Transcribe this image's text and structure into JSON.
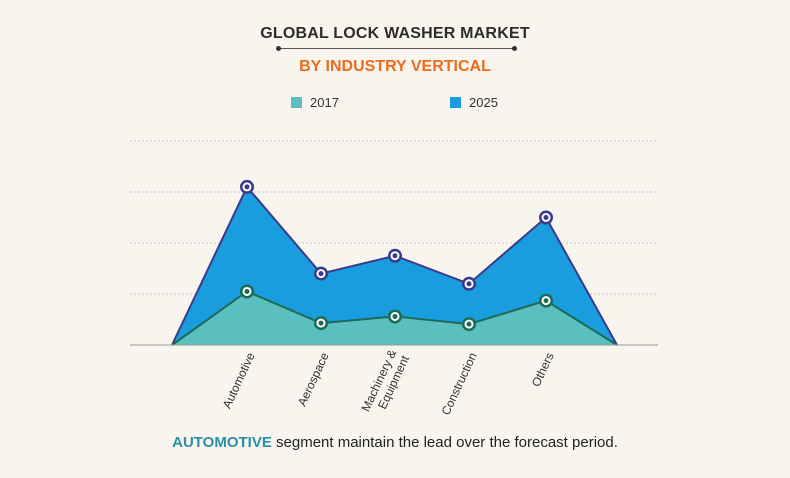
{
  "title": "GLOBAL LOCK WASHER MARKET",
  "subtitle": "BY INDUSTRY VERTICAL",
  "caption": {
    "highlight": "AUTOMOTIVE",
    "rest": " segment maintain the lead over the forecast period."
  },
  "colors": {
    "subtitle": "#ee6a1d",
    "highlight": "#2b8fa8",
    "series_2017": "#5bbfbf",
    "series_2025": "#1a9ddf",
    "line_2017": "#1b6b55",
    "line_2025": "#3a3a8c",
    "grid": "#c8c8c8"
  },
  "chart_data": {
    "type": "area",
    "categories": [
      "Automotive",
      "Aerospace",
      "Machinery & Equipment",
      "Construction",
      "Others"
    ],
    "series": [
      {
        "name": "2017",
        "values": [
          1.05,
          0.43,
          0.56,
          0.41,
          0.87
        ]
      },
      {
        "name": "2025",
        "values": [
          3.1,
          1.4,
          1.75,
          1.2,
          2.5
        ]
      }
    ],
    "ylim": [
      0,
      4
    ],
    "grid": true,
    "legend": "top-center"
  }
}
